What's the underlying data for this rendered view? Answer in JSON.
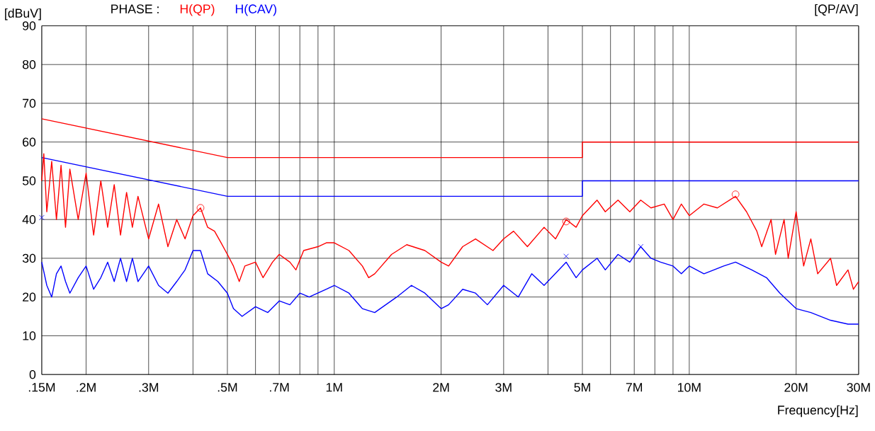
{
  "chart_data": {
    "type": "line",
    "ylabel": "[dBuV]",
    "xlabel": "Frequency[Hz]",
    "annotations": [
      "PHASE :",
      "[QP/AV]"
    ],
    "log": "x",
    "grid": true,
    "xlim": [
      0.15,
      30
    ],
    "ylim": [
      0,
      90
    ],
    "xticks": [
      {
        "value": 0.15,
        "label": ".15M"
      },
      {
        "value": 0.2,
        "label": ".2M"
      },
      {
        "value": 0.3,
        "label": ".3M"
      },
      {
        "value": 0.4,
        "label": null
      },
      {
        "value": 0.5,
        "label": ".5M"
      },
      {
        "value": 0.6,
        "label": null
      },
      {
        "value": 0.7,
        "label": ".7M"
      },
      {
        "value": 0.8,
        "label": null
      },
      {
        "value": 0.9,
        "label": null
      },
      {
        "value": 1,
        "label": "1M"
      },
      {
        "value": 2,
        "label": "2M"
      },
      {
        "value": 3,
        "label": "3M"
      },
      {
        "value": 4,
        "label": null
      },
      {
        "value": 5,
        "label": "5M"
      },
      {
        "value": 6,
        "label": null
      },
      {
        "value": 7,
        "label": "7M"
      },
      {
        "value": 8,
        "label": null
      },
      {
        "value": 9,
        "label": null
      },
      {
        "value": 10,
        "label": "10M"
      },
      {
        "value": 20,
        "label": "20M"
      },
      {
        "value": 30,
        "label": "30M"
      }
    ],
    "yticks": [
      0,
      10,
      20,
      30,
      40,
      50,
      60,
      70,
      80,
      90
    ],
    "series": [
      {
        "color": "#ff0000",
        "x": [
          0.15,
          0.5,
          5,
          5,
          30
        ],
        "values": [
          66,
          56,
          56,
          60,
          60
        ]
      },
      {
        "color": "#0000ff",
        "x": [
          0.15,
          0.5,
          5,
          5,
          30
        ],
        "values": [
          56,
          46,
          46,
          50,
          50
        ]
      },
      {
        "name": "H(QP)",
        "color": "#ff0000",
        "x": [
          0.15,
          0.152,
          0.155,
          0.16,
          0.165,
          0.17,
          0.175,
          0.18,
          0.19,
          0.2,
          0.21,
          0.22,
          0.23,
          0.24,
          0.25,
          0.26,
          0.27,
          0.28,
          0.3,
          0.32,
          0.34,
          0.36,
          0.38,
          0.4,
          0.42,
          0.44,
          0.46,
          0.48,
          0.5,
          0.52,
          0.54,
          0.56,
          0.6,
          0.63,
          0.67,
          0.7,
          0.75,
          0.78,
          0.82,
          0.9,
          0.95,
          1.0,
          1.1,
          1.2,
          1.25,
          1.3,
          1.45,
          1.6,
          1.8,
          2.0,
          2.1,
          2.3,
          2.5,
          2.8,
          3.0,
          3.2,
          3.5,
          3.9,
          4.2,
          4.5,
          4.8,
          5.0,
          5.5,
          5.8,
          6.3,
          6.8,
          7.3,
          7.8,
          8.5,
          9.0,
          9.5,
          10.0,
          11.0,
          12.0,
          13.5,
          14.5,
          15.5,
          16,
          17,
          17.5,
          18.5,
          19,
          20,
          21,
          22,
          23,
          25,
          26,
          28,
          29,
          30
        ],
        "values": [
          50,
          57,
          42,
          55,
          40,
          54,
          38,
          53,
          40,
          52,
          36,
          50,
          38,
          49,
          36,
          47,
          38,
          46,
          35,
          44,
          33,
          40,
          35,
          41,
          43,
          38,
          37,
          34,
          31,
          28,
          24,
          28,
          29,
          25,
          29,
          31,
          29,
          27,
          32,
          33,
          34,
          34,
          32,
          28,
          25,
          26,
          31,
          33.5,
          32,
          29,
          28,
          33,
          35,
          32,
          35,
          37,
          33,
          38,
          35,
          40,
          38,
          41,
          45,
          42,
          45,
          42,
          45,
          43,
          44,
          40,
          44,
          41,
          44,
          43,
          46,
          42,
          37,
          33,
          40,
          31,
          40,
          30,
          42,
          28,
          35,
          26,
          30,
          23,
          27,
          22,
          24
        ]
      },
      {
        "name": "H(CAV)",
        "color": "#0000ff",
        "x": [
          0.15,
          0.155,
          0.16,
          0.165,
          0.17,
          0.175,
          0.18,
          0.19,
          0.2,
          0.21,
          0.22,
          0.23,
          0.24,
          0.25,
          0.26,
          0.27,
          0.28,
          0.3,
          0.32,
          0.34,
          0.36,
          0.38,
          0.4,
          0.42,
          0.44,
          0.47,
          0.5,
          0.52,
          0.55,
          0.6,
          0.65,
          0.7,
          0.75,
          0.8,
          0.85,
          0.95,
          1.0,
          1.1,
          1.2,
          1.3,
          1.5,
          1.65,
          1.8,
          2.0,
          2.1,
          2.3,
          2.5,
          2.7,
          3.0,
          3.3,
          3.6,
          3.9,
          4.5,
          4.8,
          5.0,
          5.5,
          5.8,
          6.3,
          6.8,
          7.3,
          7.8,
          8.3,
          9.0,
          9.5,
          10.0,
          11.0,
          12.5,
          13.5,
          15,
          16.5,
          18,
          20,
          22,
          25,
          28,
          30
        ],
        "values": [
          29,
          23,
          20,
          26,
          28,
          24,
          21,
          25,
          28,
          22,
          25,
          29,
          24,
          30,
          24,
          30,
          24,
          28,
          23,
          21,
          24,
          27,
          32,
          32,
          26,
          24,
          21,
          17,
          15,
          17.5,
          16,
          19,
          18,
          21,
          20,
          22,
          23,
          21,
          17,
          16,
          20,
          23,
          21,
          17,
          18,
          22,
          21,
          18,
          23,
          20,
          26,
          23,
          29,
          25,
          27,
          30,
          27,
          31,
          29,
          33,
          30,
          29,
          28,
          26,
          28,
          26,
          28,
          29,
          27,
          25,
          21,
          17,
          16,
          14,
          13,
          13
        ]
      },
      {
        "type": "scatter",
        "marker": "circle",
        "color": "#ff0000",
        "x": [
          0.42,
          4.5,
          13.5
        ],
        "values": [
          43,
          39.5,
          46.5
        ]
      },
      {
        "type": "scatter",
        "marker": "cross",
        "color": "#0000ff",
        "x": [
          0.15,
          4.5,
          7.3
        ],
        "values": [
          40.5,
          30.5,
          33
        ]
      }
    ]
  }
}
